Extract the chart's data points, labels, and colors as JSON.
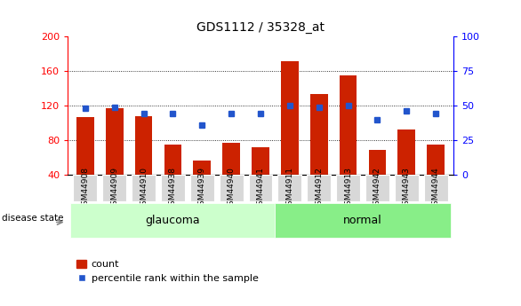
{
  "title": "GDS1112 / 35328_at",
  "samples": [
    "GSM44908",
    "GSM44909",
    "GSM44910",
    "GSM44938",
    "GSM44939",
    "GSM44940",
    "GSM44941",
    "GSM44911",
    "GSM44912",
    "GSM44913",
    "GSM44942",
    "GSM44943",
    "GSM44944"
  ],
  "groups": [
    "glaucoma",
    "glaucoma",
    "glaucoma",
    "glaucoma",
    "glaucoma",
    "glaucoma",
    "glaucoma",
    "normal",
    "normal",
    "normal",
    "normal",
    "normal",
    "normal"
  ],
  "count_values": [
    107,
    117,
    108,
    75,
    56,
    77,
    72,
    172,
    133,
    155,
    68,
    92,
    75
  ],
  "percentile_values": [
    48,
    49,
    44,
    44,
    36,
    44,
    44,
    50,
    49,
    50,
    40,
    46,
    44
  ],
  "ylim_left": [
    40,
    200
  ],
  "ylim_right": [
    0,
    100
  ],
  "yticks_left": [
    40,
    80,
    120,
    160,
    200
  ],
  "yticks_right": [
    0,
    25,
    50,
    75,
    100
  ],
  "bar_color": "#cc2200",
  "dot_color": "#2255cc",
  "glaucoma_color": "#ccffcc",
  "normal_color": "#88ee88",
  "tick_bg_color": "#d8d8d8",
  "title_fontsize": 10,
  "axis_fontsize": 8,
  "label_fontsize": 8
}
